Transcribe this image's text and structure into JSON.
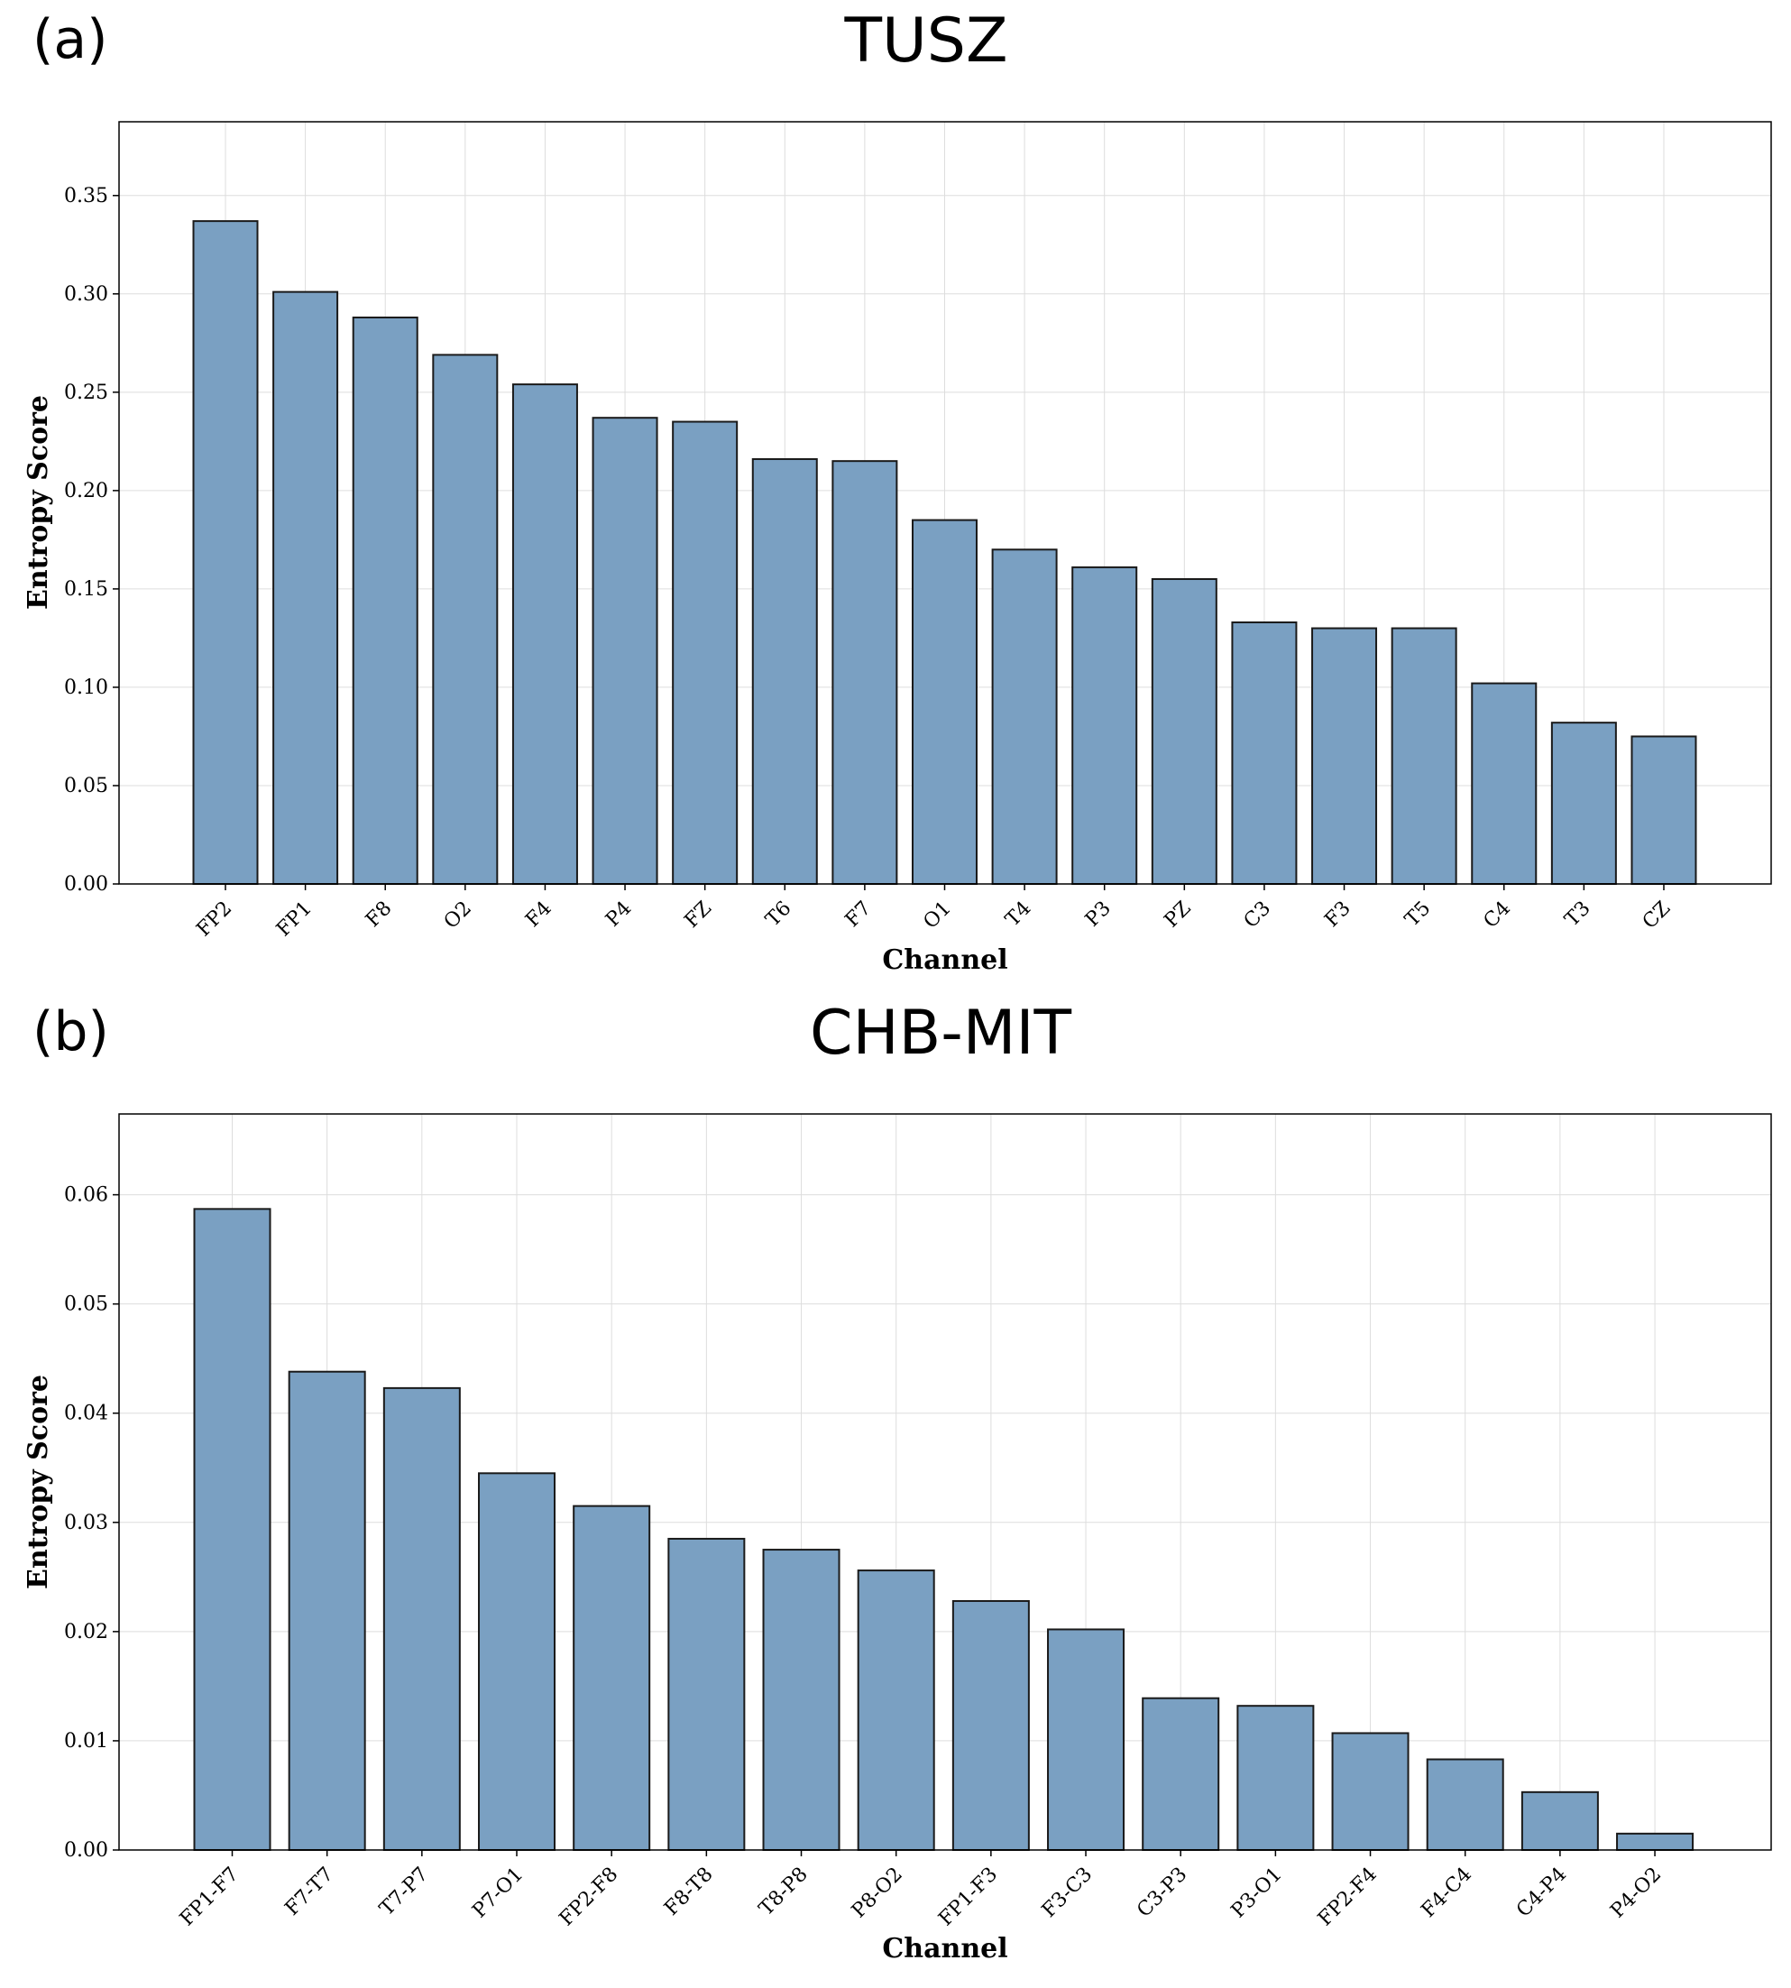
{
  "chart_data": [
    {
      "type": "bar",
      "panel_label": "(a)",
      "title": "TUSZ",
      "xlabel": "Channel",
      "ylabel": "Entropy Score",
      "categories": [
        "FP2",
        "FP1",
        "F8",
        "O2",
        "F4",
        "P4",
        "FZ",
        "T6",
        "F7",
        "O1",
        "T4",
        "P3",
        "PZ",
        "C3",
        "F3",
        "T5",
        "C4",
        "T3",
        "CZ"
      ],
      "values": [
        0.337,
        0.301,
        0.288,
        0.269,
        0.254,
        0.237,
        0.235,
        0.216,
        0.215,
        0.185,
        0.17,
        0.161,
        0.155,
        0.133,
        0.13,
        0.13,
        0.102,
        0.082,
        0.075
      ],
      "yticks": [
        "0.00",
        "0.05",
        "0.10",
        "0.15",
        "0.20",
        "0.25",
        "0.30",
        "0.35"
      ],
      "ylim": [
        0,
        0.3875
      ],
      "grid": true,
      "bar_color": "#7aa0c2"
    },
    {
      "type": "bar",
      "panel_label": "(b)",
      "title": "CHB-MIT",
      "xlabel": "Channel",
      "ylabel": "Entropy Score",
      "categories": [
        "FP1-F7",
        "F7-T7",
        "T7-P7",
        "P7-O1",
        "FP2-F8",
        "F8-T8",
        "T8-P8",
        "P8-O2",
        "FP1-F3",
        "F3-C3",
        "C3-P3",
        "P3-O1",
        "FP2-F4",
        "F4-C4",
        "C4-P4",
        "P4-O2"
      ],
      "values": [
        0.0587,
        0.0438,
        0.0423,
        0.0345,
        0.0315,
        0.0285,
        0.0275,
        0.0256,
        0.0228,
        0.0202,
        0.0139,
        0.0132,
        0.0107,
        0.0083,
        0.0053,
        0.0015
      ],
      "yticks": [
        "0.00",
        "0.01",
        "0.02",
        "0.03",
        "0.04",
        "0.05",
        "0.06"
      ],
      "ylim": [
        0,
        0.0674
      ],
      "grid": true,
      "bar_color": "#7aa0c2"
    }
  ]
}
